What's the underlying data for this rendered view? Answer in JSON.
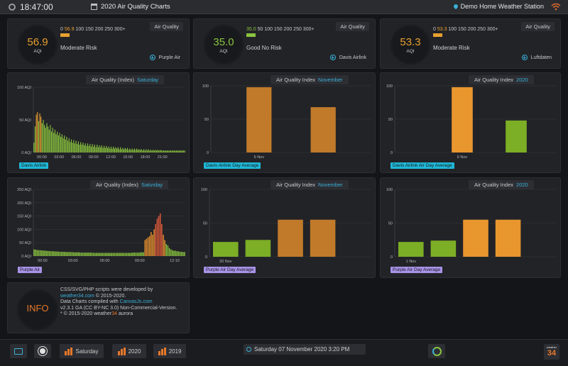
{
  "header": {
    "time": "18:47:00",
    "title": "2020 Air Quality Charts",
    "station": "Demo Home Weather Station"
  },
  "aqi_cards": [
    {
      "value": "56.9",
      "unit": "AQI",
      "scale_current": "56.9",
      "scale_rest": "100 150 200 250 300+",
      "risk": "Moderate Risk",
      "tag": "Air Quality",
      "source": "Purple Air",
      "color": "#e8a030"
    },
    {
      "value": "35.0",
      "unit": "AQI",
      "scale_current": "35.0",
      "scale_rest": "50 100 150 200 250 300+",
      "risk": "Good No Risk",
      "tag": "Air Quality",
      "source": "Davis Airlink",
      "color": "#8ac43f"
    },
    {
      "value": "53.3",
      "unit": "AQI",
      "scale_current": "53.3",
      "scale_rest": "100 150 200 250 300+",
      "risk": "Moderate Risk",
      "tag": "Air Quality",
      "source": "Luftdaten",
      "color": "#e8a030"
    }
  ],
  "chart_titles": {
    "airlink_day": {
      "text": "Air Quality (Index)",
      "period": "Saturday"
    },
    "airlink_month": {
      "text": "Air Quality  Index",
      "period": "November"
    },
    "airlink_year": {
      "text": "Air Quality  Index",
      "period": "2020"
    },
    "purple_day": {
      "text": "Air Quality  (Index)",
      "period": "Saturday"
    },
    "purple_month": {
      "text": "Air Quality  Index",
      "period": "November"
    },
    "purple_year": {
      "text": "Air Quality  Index",
      "period": "2020"
    }
  },
  "legends": {
    "airlink_day": "Davis Airlink",
    "airlink_month": "Davis Airlink Day Average",
    "airlink_year": "Davis Airlink Air Day Average",
    "purple_day": "Purple Air",
    "purple_month": "Purple Air Day Average",
    "purple_year": "Purple Air Day Average"
  },
  "chart_data": [
    {
      "id": "airlink_day",
      "type": "bar",
      "title": "Air Quality (Index) Saturday",
      "ylim": [
        0,
        100
      ],
      "yticks": [
        0,
        50,
        100
      ],
      "ytick_labels": [
        "0 AQI",
        "50 AQI",
        "100 AQI"
      ],
      "xtick_labels": [
        "00:00",
        "03:00",
        "06:00",
        "09:00",
        "12:00",
        "15:00",
        "18:00",
        "21:00"
      ],
      "legend": "Davis Airlink",
      "legend_position": "bottom-left",
      "values": [
        15,
        40,
        58,
        62,
        48,
        60,
        55,
        45,
        50,
        42,
        38,
        45,
        40,
        35,
        42,
        32,
        38,
        30,
        35,
        28,
        32,
        26,
        30,
        24,
        28,
        22,
        26,
        20,
        24,
        18,
        22,
        16,
        20,
        15,
        19,
        14,
        18,
        13,
        17,
        12,
        16,
        12,
        15,
        11,
        14,
        10,
        14,
        10,
        13,
        9,
        13,
        9,
        12,
        8,
        12,
        8,
        11,
        8,
        11,
        7,
        10,
        7,
        10,
        7,
        9,
        6,
        9,
        6,
        9,
        6,
        8,
        6,
        8,
        5,
        8,
        5,
        7,
        5,
        7,
        5,
        7,
        4,
        6,
        4,
        6,
        4,
        6,
        4,
        6,
        4,
        5,
        4,
        5,
        3,
        5,
        3,
        5,
        3,
        5,
        3,
        4,
        3,
        4,
        3,
        4,
        3,
        4,
        3,
        4,
        3,
        3,
        3,
        3,
        3,
        3,
        3,
        3,
        3,
        3,
        3,
        3,
        3,
        3,
        3,
        3,
        3,
        3,
        3,
        3,
        3
      ]
    },
    {
      "id": "airlink_month",
      "type": "bar",
      "title": "Air Quality Index November",
      "ylim": [
        0,
        100
      ],
      "yticks": [
        0,
        50,
        100
      ],
      "xtick_labels": [
        "6 Nov"
      ],
      "legend": "Davis Airlink Day Average",
      "legend_position": "bottom-left",
      "values": [
        98,
        68
      ],
      "colors": [
        "#c07a2a",
        "#c07a2a"
      ]
    },
    {
      "id": "airlink_year",
      "type": "bar",
      "title": "Air Quality Index 2020",
      "ylim": [
        0,
        100
      ],
      "yticks": [
        0,
        50,
        100
      ],
      "xtick_labels": [
        "6 Nov"
      ],
      "legend": "Davis Airlink Air Day Average",
      "legend_position": "bottom-left",
      "values": [
        98,
        48
      ],
      "colors": [
        "#e8962e",
        "#7cae26"
      ]
    },
    {
      "id": "purple_day",
      "type": "bar",
      "title": "Air Quality (Index) Saturday",
      "ylim": [
        0,
        250
      ],
      "yticks": [
        0,
        50,
        100,
        150,
        200,
        250
      ],
      "ytick_labels": [
        "0 AQI",
        "50 AQI",
        "100 AQI",
        "150 AQI",
        "200 AQI",
        "250 AQI"
      ],
      "xtick_labels": [
        "00:00",
        "03:00",
        "06:00",
        "09:00",
        "12:10"
      ],
      "legend": "Purple Air",
      "legend_position": "bottom-left",
      "values": [
        25,
        24,
        23,
        22,
        22,
        21,
        21,
        20,
        20,
        19,
        19,
        18,
        18,
        18,
        17,
        17,
        17,
        16,
        16,
        16,
        16,
        15,
        15,
        15,
        15,
        15,
        14,
        14,
        14,
        14,
        14,
        13,
        13,
        13,
        13,
        13,
        13,
        13,
        13,
        12,
        12,
        12,
        12,
        12,
        12,
        12,
        12,
        12,
        12,
        12,
        12,
        12,
        12,
        12,
        12,
        12,
        12,
        12,
        12,
        12,
        12,
        12,
        12,
        12,
        12,
        13,
        13,
        13,
        13,
        13,
        14,
        14,
        14,
        60,
        65,
        70,
        75,
        90,
        80,
        100,
        120,
        140,
        150,
        160,
        120,
        80,
        60,
        45,
        40,
        30,
        25,
        22,
        20,
        20,
        18,
        18,
        16,
        16,
        15,
        15
      ]
    },
    {
      "id": "purple_month",
      "type": "bar",
      "title": "Air Quality Index November",
      "ylim": [
        0,
        100
      ],
      "yticks": [
        0,
        50,
        100
      ],
      "xtick_labels": [
        "20 Nov"
      ],
      "legend": "Purple Air Day Average",
      "legend_position": "bottom-left",
      "values": [
        22,
        25,
        55,
        55
      ],
      "colors": [
        "#7cae26",
        "#7cae26",
        "#c07a2a",
        "#c07a2a"
      ]
    },
    {
      "id": "purple_year",
      "type": "bar",
      "title": "Air Quality Index 2020",
      "ylim": [
        0,
        100
      ],
      "yticks": [
        0,
        50,
        100
      ],
      "xtick_labels": [
        "1 Nov"
      ],
      "legend": "Purple Air Day Average",
      "legend_position": "bottom-left",
      "values": [
        22,
        24,
        55,
        55
      ],
      "colors": [
        "#7cae26",
        "#7cae26",
        "#e8962e",
        "#e8962e"
      ]
    }
  ],
  "info": {
    "label": "INFO",
    "line1": "CSS/SVG/PHP scripts were developed by",
    "link1": "weather34.com",
    "line1b": " © 2015-2020.",
    "line2": "Data Charts compiled with ",
    "link2": "CanvasJs.com",
    "line3": "v2.3.1 GA (CC BY-NC 3.0) Non-Commercial-Version.",
    "line4": "* © 2015-2020 weather",
    "brand": "34",
    "line4b": " aurora"
  },
  "footer": {
    "btn_saturday": "Saturday",
    "btn_2020": "2020",
    "btn_2019": "2019",
    "datetime": "Saturday 07 November 2020 3:20 PM",
    "logo_small": "weather",
    "logo_big": "34"
  },
  "colors": {
    "accent": "#3ab0d8",
    "orange": "#e8782a",
    "green": "#8ac43f",
    "panel": "#222327"
  }
}
